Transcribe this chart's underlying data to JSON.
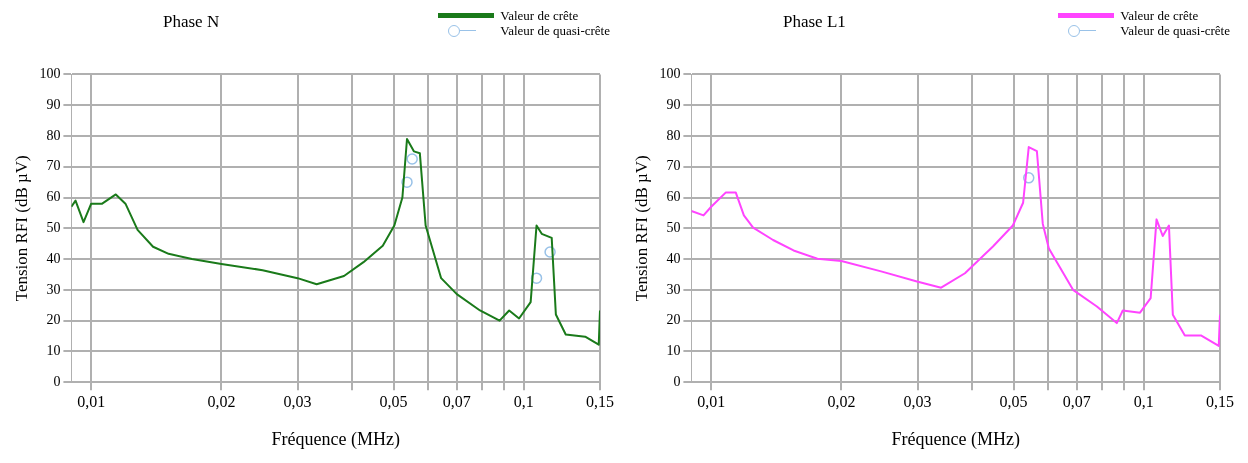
{
  "chart_data": [
    {
      "type": "line",
      "title": "Phase N",
      "xlabel": "Fréquence (MHz)",
      "ylabel": "Tension RFI (dB µV)",
      "log": "x",
      "grid": true,
      "legend": "top right",
      "xlim": [
        0.009,
        0.15
      ],
      "ylim": [
        0,
        100
      ],
      "xticks": [
        {
          "value": 0.01,
          "label": "0,01"
        },
        {
          "value": 0.02,
          "label": "0,02"
        },
        {
          "value": 0.03,
          "label": "0,03"
        },
        {
          "value": 0.04,
          "label": null
        },
        {
          "value": 0.05,
          "label": "0,05"
        },
        {
          "value": 0.06,
          "label": null
        },
        {
          "value": 0.07,
          "label": "0,07"
        },
        {
          "value": 0.08,
          "label": null
        },
        {
          "value": 0.09,
          "label": null
        },
        {
          "value": 0.1,
          "label": "0,1"
        },
        {
          "value": 0.15,
          "label": "0,15"
        }
      ],
      "yticks": [
        0,
        10,
        20,
        30,
        40,
        50,
        60,
        70,
        80,
        90,
        100
      ],
      "series": [
        {
          "name": "Valeur de crête",
          "color": "#1a7a1a",
          "x": [
            0.009,
            0.0092,
            0.0096,
            0.01,
            0.0106,
            0.0114,
            0.012,
            0.0128,
            0.0139,
            0.0151,
            0.0171,
            0.02,
            0.0249,
            0.03,
            0.0332,
            0.0384,
            0.0426,
            0.0472,
            0.0502,
            0.0524,
            0.0537,
            0.0557,
            0.0575,
            0.0593,
            0.0644,
            0.07,
            0.0792,
            0.0879,
            0.0925,
            0.0975,
            0.1037,
            0.107,
            0.11,
            0.116,
            0.1186,
            0.125,
            0.1386,
            0.149,
            0.15
          ],
          "values": [
            57,
            59,
            52,
            58,
            58,
            61,
            58,
            49.5,
            44,
            41.7,
            40,
            38.4,
            36.4,
            33.8,
            31.8,
            34.5,
            39,
            44.3,
            50.9,
            60,
            79,
            75,
            74.4,
            50.9,
            33.8,
            28.6,
            23.3,
            20,
            23.3,
            20.7,
            26,
            50.9,
            48.2,
            46.9,
            22,
            15.5,
            14.8,
            12.2,
            23.3
          ]
        },
        {
          "name": "Valeur de quasi-crête",
          "type": "scatter",
          "marker": "circle",
          "color": "#99c2e8",
          "x": [
            0.0537,
            0.0552,
            0.107,
            0.115
          ],
          "values": [
            65,
            72.5,
            33.8,
            42.3
          ]
        }
      ]
    },
    {
      "type": "line",
      "title": "Phase L1",
      "xlabel": "Fréquence (MHz)",
      "ylabel": "Tension RFI (dB µV)",
      "log": "x",
      "grid": true,
      "legend": "top right",
      "xlim": [
        0.009,
        0.15
      ],
      "ylim": [
        0,
        100
      ],
      "xticks": [
        {
          "value": 0.01,
          "label": "0,01"
        },
        {
          "value": 0.02,
          "label": "0,02"
        },
        {
          "value": 0.03,
          "label": "0,03"
        },
        {
          "value": 0.04,
          "label": null
        },
        {
          "value": 0.05,
          "label": "0,05"
        },
        {
          "value": 0.06,
          "label": null
        },
        {
          "value": 0.07,
          "label": "0,07"
        },
        {
          "value": 0.08,
          "label": null
        },
        {
          "value": 0.09,
          "label": null
        },
        {
          "value": 0.1,
          "label": "0,1"
        },
        {
          "value": 0.15,
          "label": "0,15"
        }
      ],
      "yticks": [
        0,
        10,
        20,
        30,
        40,
        50,
        60,
        70,
        80,
        90,
        100
      ],
      "series": [
        {
          "name": "Valeur de crête",
          "color": "#ff44ff",
          "x": [
            0.009,
            0.0096,
            0.01,
            0.0108,
            0.0114,
            0.0119,
            0.0125,
            0.0139,
            0.0155,
            0.0176,
            0.02,
            0.0247,
            0.0299,
            0.034,
            0.0386,
            0.0448,
            0.0498,
            0.0526,
            0.0542,
            0.0566,
            0.0584,
            0.0603,
            0.0686,
            0.0779,
            0.0866,
            0.0894,
            0.098,
            0.1037,
            0.107,
            0.1106,
            0.1143,
            0.1167,
            0.1244,
            0.1355,
            0.149,
            0.15
          ],
          "values": [
            55.6,
            54.2,
            57,
            61.6,
            61.6,
            54.2,
            50.2,
            46.2,
            42.8,
            40.1,
            39.4,
            36,
            32.7,
            30.7,
            35.4,
            44.1,
            50.9,
            58.3,
            76.4,
            75.1,
            51.5,
            43.5,
            30,
            24.6,
            19.2,
            23.3,
            22.6,
            27.3,
            52.9,
            47.5,
            50.9,
            21.9,
            15.2,
            15.2,
            11.8,
            21.9
          ]
        },
        {
          "name": "Valeur de quasi-crête",
          "type": "scatter",
          "marker": "circle",
          "color": "#99c2e8",
          "x": [
            0.0542
          ],
          "values": [
            66.4
          ]
        }
      ]
    }
  ]
}
